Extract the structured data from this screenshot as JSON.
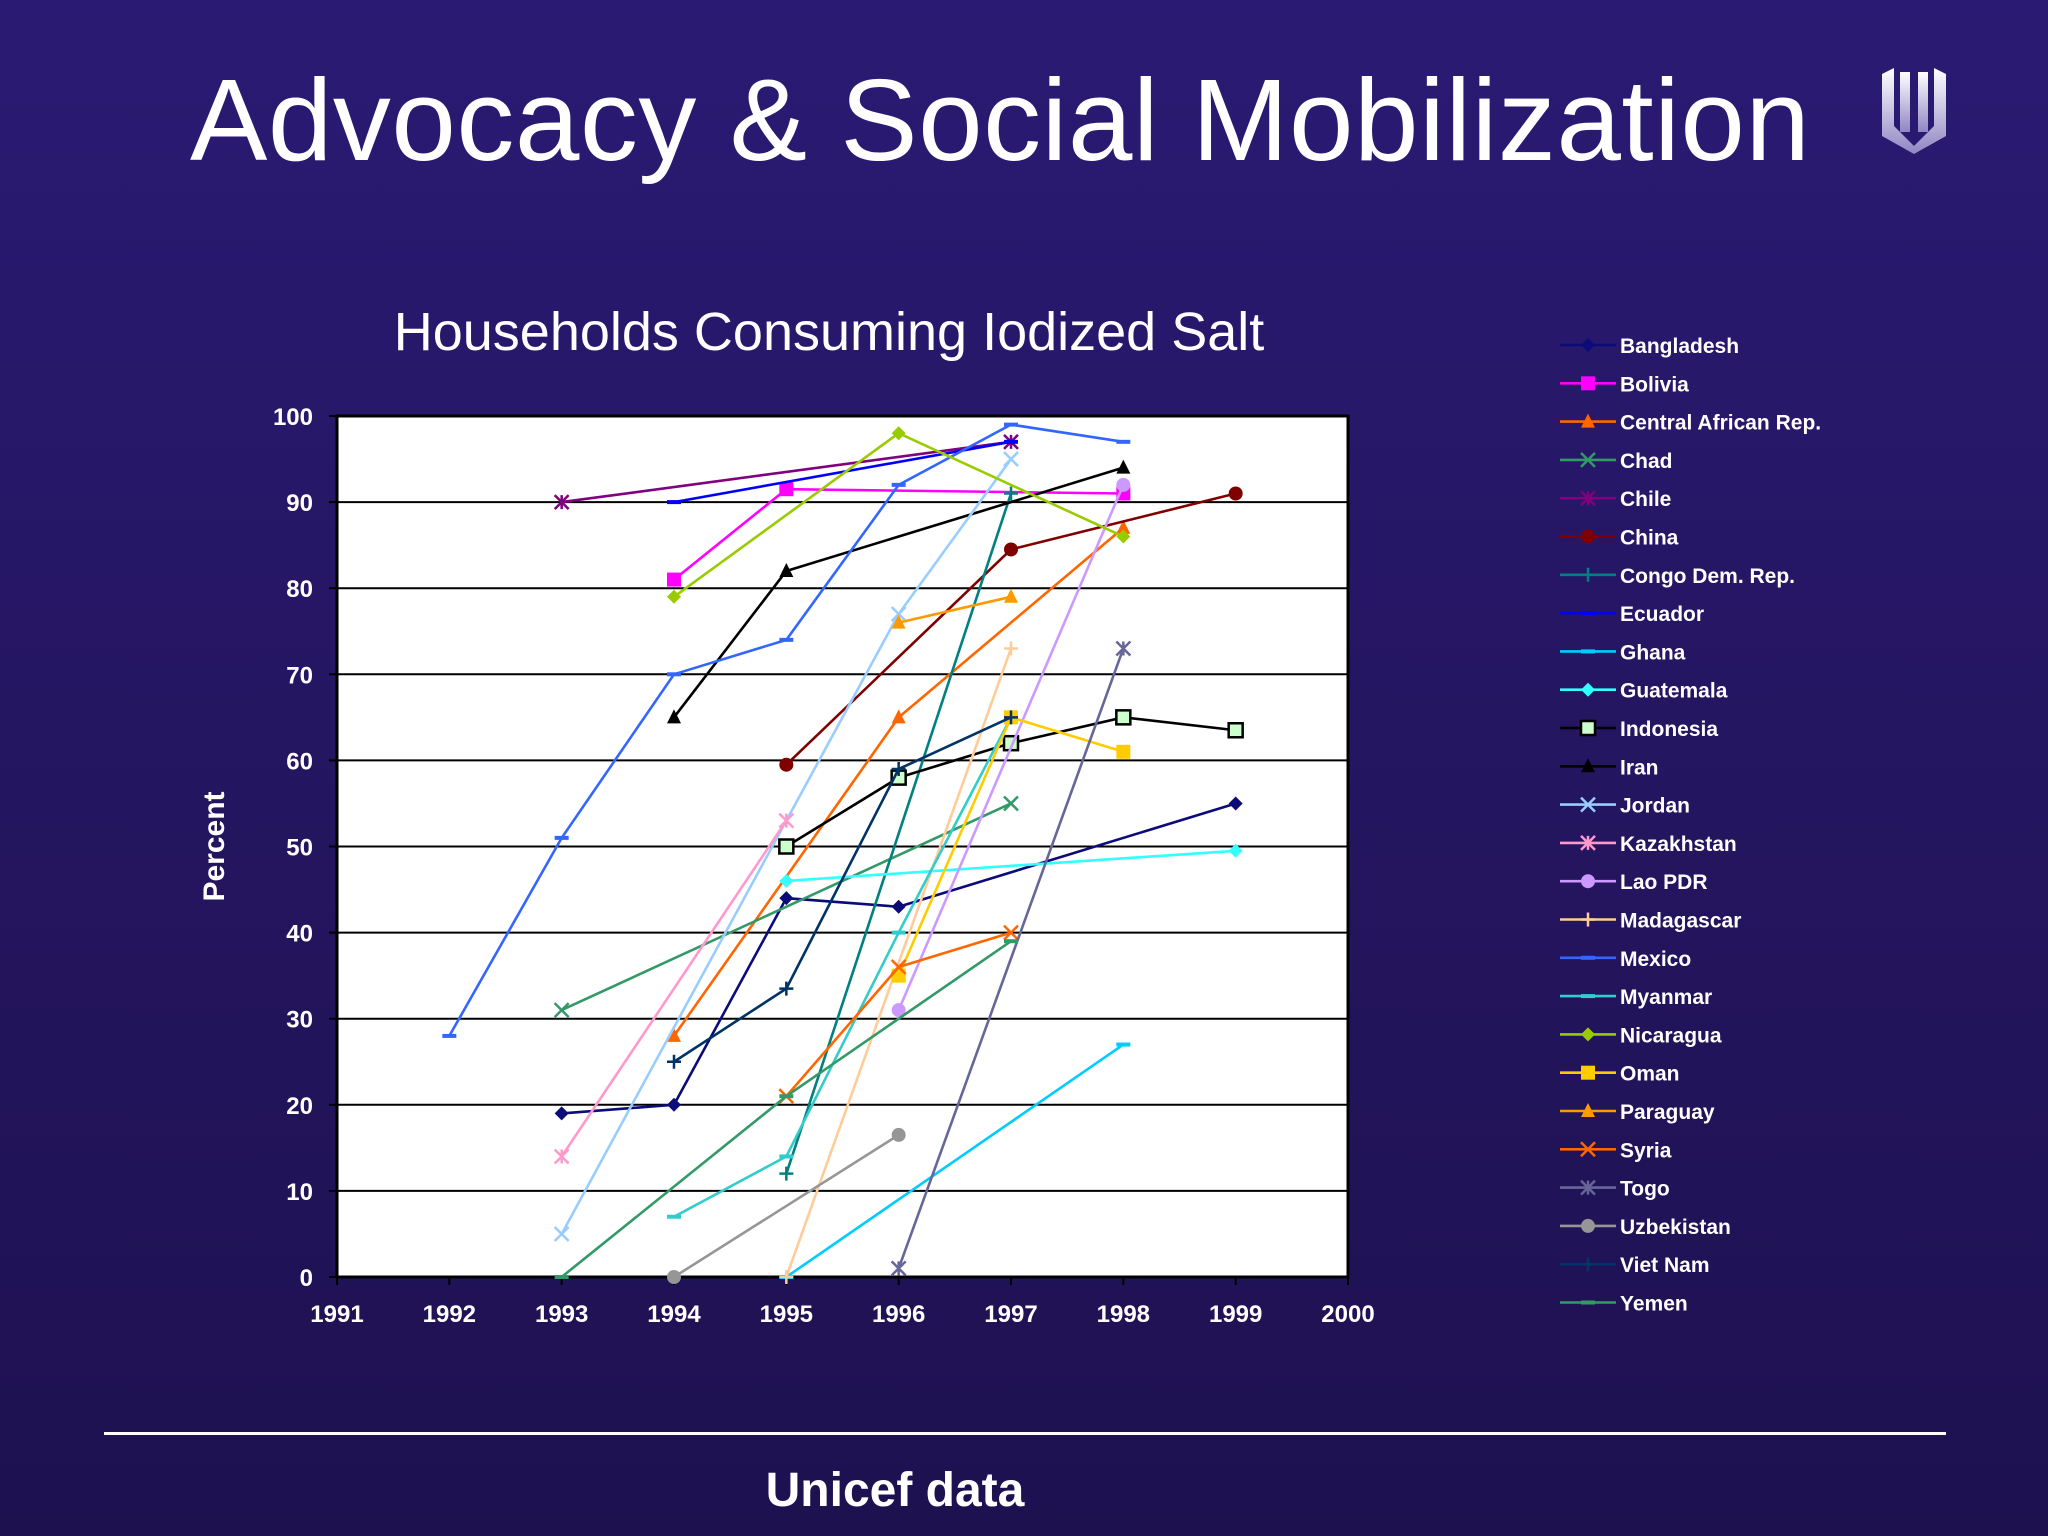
{
  "slide": {
    "title": "Advocacy & Social Mobilization",
    "footer": "Unicef data"
  },
  "chart_data": {
    "type": "line",
    "title": "Households Consuming Iodized Salt",
    "xlabel": "",
    "ylabel": "Percent",
    "xlim": [
      1991,
      2000
    ],
    "ylim": [
      0,
      100
    ],
    "x_ticks": [
      1991,
      1992,
      1993,
      1994,
      1995,
      1996,
      1997,
      1998,
      1999,
      2000
    ],
    "y_ticks": [
      0,
      10,
      20,
      30,
      40,
      50,
      60,
      70,
      80,
      90,
      100
    ],
    "grid": true,
    "legend_position": "right",
    "plot_background": "#ffffff",
    "series": [
      {
        "name": "Bangladesh",
        "color": "#0b0b7a",
        "marker": "diamond",
        "points": [
          [
            1993,
            19
          ],
          [
            1994,
            20
          ],
          [
            1995,
            44
          ],
          [
            1996,
            43
          ],
          [
            1999,
            55
          ]
        ]
      },
      {
        "name": "Bolivia",
        "color": "#ff00ff",
        "marker": "square",
        "points": [
          [
            1994,
            81
          ],
          [
            1995,
            91.5
          ],
          [
            1998,
            91
          ]
        ]
      },
      {
        "name": "Central African Rep.",
        "color": "#ff6600",
        "marker": "triangle",
        "points": [
          [
            1994,
            28
          ],
          [
            1996,
            65
          ],
          [
            1998,
            87
          ]
        ]
      },
      {
        "name": "Chad",
        "color": "#339966",
        "marker": "x",
        "points": [
          [
            1993,
            31
          ],
          [
            1997,
            55
          ]
        ]
      },
      {
        "name": "Chile",
        "color": "#800080",
        "marker": "star",
        "points": [
          [
            1993,
            90
          ],
          [
            1997,
            97
          ]
        ]
      },
      {
        "name": "China",
        "color": "#800000",
        "marker": "circle",
        "points": [
          [
            1995,
            59.5
          ],
          [
            1997,
            84.5
          ],
          [
            1999,
            91
          ]
        ]
      },
      {
        "name": "Congo Dem. Rep.",
        "color": "#008080",
        "marker": "plus",
        "points": [
          [
            1995,
            12
          ],
          [
            1997,
            91
          ]
        ]
      },
      {
        "name": "Ecuador",
        "color": "#0000ff",
        "marker": "dash",
        "points": [
          [
            1994,
            90
          ],
          [
            1997,
            97
          ]
        ]
      },
      {
        "name": "Ghana",
        "color": "#00ccff",
        "marker": "dash",
        "points": [
          [
            1995,
            0
          ],
          [
            1998,
            27
          ]
        ]
      },
      {
        "name": "Guatemala",
        "color": "#33ffff",
        "marker": "diamond",
        "points": [
          [
            1995,
            46
          ],
          [
            1999,
            49.5
          ]
        ]
      },
      {
        "name": "Indonesia",
        "color": "#000000",
        "marker": "square-open",
        "points": [
          [
            1995,
            50
          ],
          [
            1996,
            58
          ],
          [
            1997,
            62
          ],
          [
            1998,
            65
          ],
          [
            1999,
            63.5
          ]
        ]
      },
      {
        "name": "Iran",
        "color": "#000000",
        "marker": "triangle",
        "points": [
          [
            1994,
            65
          ],
          [
            1995,
            82
          ],
          [
            1998,
            94
          ]
        ]
      },
      {
        "name": "Jordan",
        "color": "#99ccff",
        "marker": "x",
        "points": [
          [
            1993,
            5
          ],
          [
            1996,
            77
          ],
          [
            1997,
            95
          ]
        ]
      },
      {
        "name": "Kazakhstan",
        "color": "#ff99cc",
        "marker": "star",
        "points": [
          [
            1993,
            14
          ],
          [
            1995,
            53
          ]
        ]
      },
      {
        "name": "Lao PDR",
        "color": "#cc99ff",
        "marker": "circle",
        "points": [
          [
            1996,
            31
          ],
          [
            1998,
            92
          ]
        ]
      },
      {
        "name": "Madagascar",
        "color": "#ffcc99",
        "marker": "plus",
        "points": [
          [
            1995,
            0
          ],
          [
            1997,
            73
          ]
        ]
      },
      {
        "name": "Mexico",
        "color": "#3366ff",
        "marker": "dash",
        "points": [
          [
            1992,
            28
          ],
          [
            1993,
            51
          ],
          [
            1994,
            70
          ],
          [
            1995,
            74
          ],
          [
            1996,
            92
          ],
          [
            1997,
            99
          ],
          [
            1998,
            97
          ]
        ]
      },
      {
        "name": "Myanmar",
        "color": "#33cccc",
        "marker": "dash",
        "points": [
          [
            1994,
            7
          ],
          [
            1995,
            14
          ],
          [
            1996,
            40
          ],
          [
            1997,
            65
          ]
        ]
      },
      {
        "name": "Nicaragua",
        "color": "#99cc00",
        "marker": "diamond",
        "points": [
          [
            1994,
            79
          ],
          [
            1996,
            98
          ],
          [
            1998,
            86
          ]
        ]
      },
      {
        "name": "Oman",
        "color": "#ffcc00",
        "marker": "square",
        "points": [
          [
            1996,
            35
          ],
          [
            1997,
            65
          ],
          [
            1998,
            61
          ]
        ]
      },
      {
        "name": "Paraguay",
        "color": "#ff9900",
        "marker": "triangle",
        "points": [
          [
            1996,
            76
          ],
          [
            1997,
            79
          ]
        ]
      },
      {
        "name": "Syria",
        "color": "#ff6600",
        "marker": "x",
        "points": [
          [
            1995,
            21
          ],
          [
            1996,
            36
          ],
          [
            1997,
            40
          ]
        ]
      },
      {
        "name": "Togo",
        "color": "#666699",
        "marker": "star",
        "points": [
          [
            1996,
            1
          ],
          [
            1998,
            73
          ]
        ]
      },
      {
        "name": "Uzbekistan",
        "color": "#969696",
        "marker": "circle",
        "points": [
          [
            1994,
            0
          ],
          [
            1996,
            16.5
          ]
        ]
      },
      {
        "name": "Viet Nam",
        "color": "#003366",
        "marker": "plus",
        "points": [
          [
            1994,
            25
          ],
          [
            1995,
            33.5
          ],
          [
            1996,
            59
          ],
          [
            1997,
            65
          ]
        ]
      },
      {
        "name": "Yemen",
        "color": "#339966",
        "marker": "dash",
        "points": [
          [
            1993,
            0
          ],
          [
            1995,
            21
          ],
          [
            1997,
            39
          ]
        ]
      }
    ]
  }
}
